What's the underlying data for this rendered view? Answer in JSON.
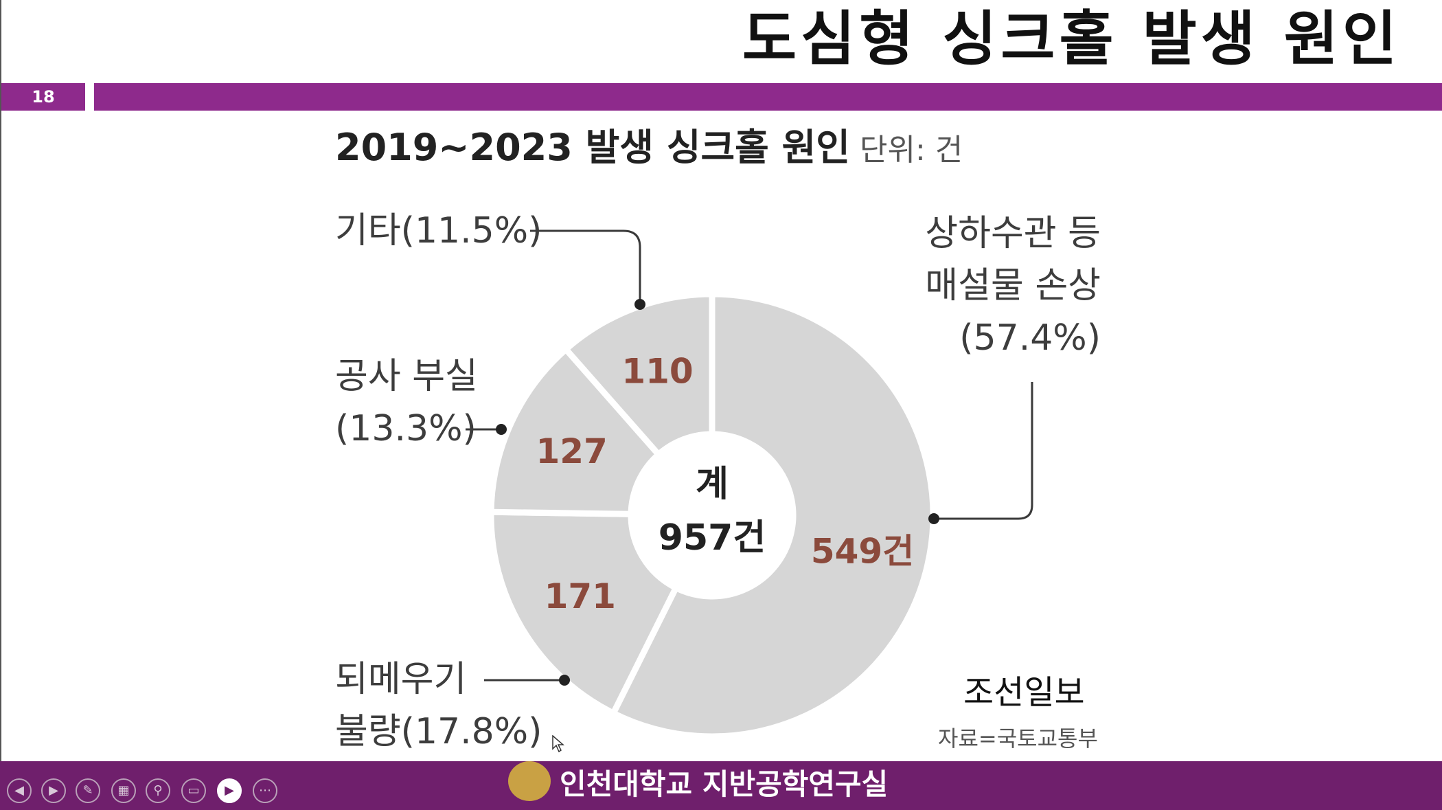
{
  "slide": {
    "title": "도심형 싱크홀 발생 원인",
    "page_number": "18",
    "accent_color": "#8e2a8c"
  },
  "chart_heading": {
    "title": "2019~2023 발생 싱크홀 원인",
    "unit": "단위: 건"
  },
  "chart_data": {
    "type": "pie",
    "style": "donut",
    "title": "2019~2023 발생 싱크홀 원인",
    "unit": "단위: 건",
    "center_label": "계",
    "total_label": "957건",
    "total": 957,
    "slice_color": "#d6d6d6",
    "value_label_color": "#8b4a3c",
    "slices": [
      {
        "label_lines": [
          "상하수관 등",
          "매설물 손상",
          "(57.4%)"
        ],
        "value": 549,
        "value_label": "549건",
        "percent": 57.4
      },
      {
        "label_lines": [
          "되메우기",
          "불량(17.8%)"
        ],
        "value": 171,
        "value_label": "171",
        "percent": 17.8
      },
      {
        "label_lines": [
          "공사 부실",
          "(13.3%)"
        ],
        "value": 127,
        "value_label": "127",
        "percent": 13.3
      },
      {
        "label_lines": [
          "기타(11.5%)"
        ],
        "value": 110,
        "value_label": "110",
        "percent": 11.5
      }
    ]
  },
  "source": {
    "brand": "조선일보",
    "reference": "자료=국토교통부"
  },
  "footer": {
    "organization": "인천대학교 지반공학연구실",
    "background_color": "#6f1f6c",
    "controls": [
      {
        "name": "previous-slide-icon",
        "glyph": "◀"
      },
      {
        "name": "next-slide-icon",
        "glyph": "▶"
      },
      {
        "name": "pen-icon",
        "glyph": "✎"
      },
      {
        "name": "slide-grid-icon",
        "glyph": "▦"
      },
      {
        "name": "zoom-icon",
        "glyph": "⚲"
      },
      {
        "name": "subtitle-icon",
        "glyph": "▭"
      },
      {
        "name": "camera-icon",
        "glyph": "▶"
      },
      {
        "name": "more-options-icon",
        "glyph": "⋯"
      }
    ]
  }
}
